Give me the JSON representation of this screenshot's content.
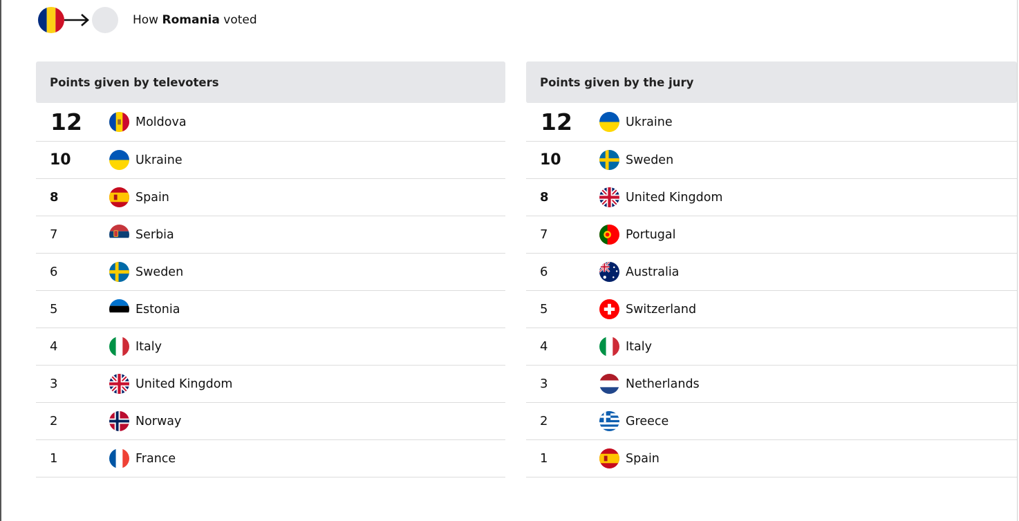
{
  "header": {
    "prefix": "How ",
    "country": "Romania",
    "suffix": " voted"
  },
  "televoters": {
    "title": "Points given by televoters",
    "rows": [
      {
        "points": "12",
        "country": "Moldova",
        "flag": "moldova"
      },
      {
        "points": "10",
        "country": "Ukraine",
        "flag": "ukraine"
      },
      {
        "points": "8",
        "country": "Spain",
        "flag": "spain"
      },
      {
        "points": "7",
        "country": "Serbia",
        "flag": "serbia"
      },
      {
        "points": "6",
        "country": "Sweden",
        "flag": "sweden"
      },
      {
        "points": "5",
        "country": "Estonia",
        "flag": "estonia"
      },
      {
        "points": "4",
        "country": "Italy",
        "flag": "italy"
      },
      {
        "points": "3",
        "country": "United Kingdom",
        "flag": "uk"
      },
      {
        "points": "2",
        "country": "Norway",
        "flag": "norway"
      },
      {
        "points": "1",
        "country": "France",
        "flag": "france"
      }
    ]
  },
  "jury": {
    "title": "Points given by the jury",
    "rows": [
      {
        "points": "12",
        "country": "Ukraine",
        "flag": "ukraine"
      },
      {
        "points": "10",
        "country": "Sweden",
        "flag": "sweden"
      },
      {
        "points": "8",
        "country": "United Kingdom",
        "flag": "uk"
      },
      {
        "points": "7",
        "country": "Portugal",
        "flag": "portugal"
      },
      {
        "points": "6",
        "country": "Australia",
        "flag": "australia"
      },
      {
        "points": "5",
        "country": "Switzerland",
        "flag": "switzerland"
      },
      {
        "points": "4",
        "country": "Italy",
        "flag": "italy"
      },
      {
        "points": "3",
        "country": "Netherlands",
        "flag": "netherlands"
      },
      {
        "points": "2",
        "country": "Greece",
        "flag": "greece"
      },
      {
        "points": "1",
        "country": "Spain",
        "flag": "spain"
      }
    ]
  }
}
